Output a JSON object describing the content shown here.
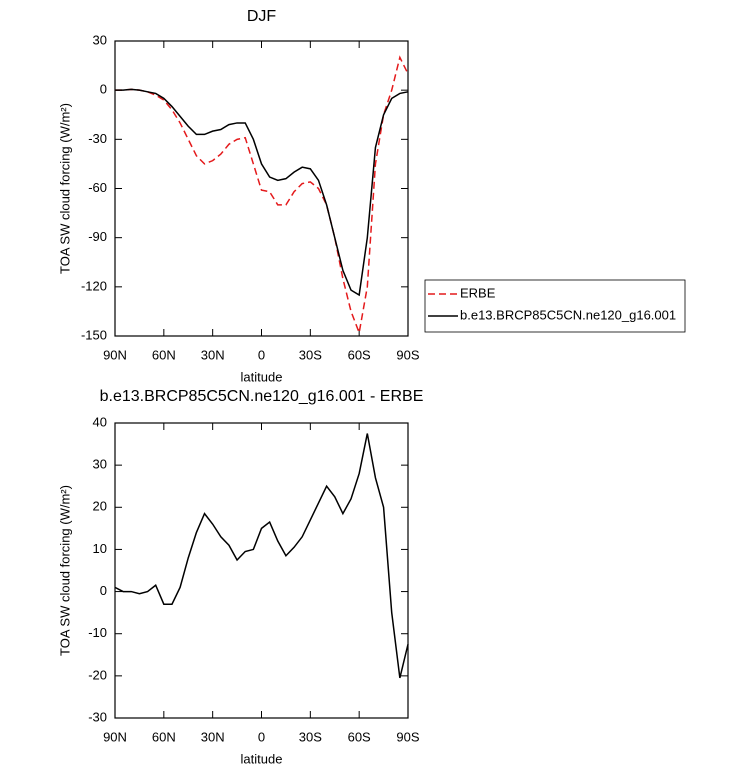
{
  "chart_data": [
    {
      "type": "line",
      "title": "DJF",
      "xlabel": "latitude",
      "ylabel": "TOA SW cloud forcing (W/m²)",
      "x": [
        90,
        85,
        80,
        75,
        70,
        65,
        60,
        55,
        50,
        45,
        40,
        35,
        30,
        25,
        20,
        15,
        10,
        5,
        0,
        -5,
        -10,
        -15,
        -20,
        -25,
        -30,
        -35,
        -40,
        -45,
        -50,
        -55,
        -60,
        -65,
        -70,
        -75,
        -80,
        -85,
        -90
      ],
      "series": [
        {
          "name": "ERBE",
          "color": "#e41a1c",
          "dash": true,
          "values": [
            0,
            0,
            0.5,
            0,
            -1,
            -3,
            -6,
            -12,
            -20,
            -30,
            -40,
            -45,
            -43,
            -39,
            -33,
            -30,
            -29,
            -45,
            -61,
            -62,
            -70,
            -70,
            -62,
            -57,
            -56,
            -60,
            -70,
            -90,
            -115,
            -135,
            -148,
            -120,
            -45,
            -15,
            0,
            20,
            10
          ]
        },
        {
          "name": "b.e13.BRCP85C5CN.ne120_g16.001",
          "color": "#000000",
          "dash": false,
          "values": [
            0,
            0,
            0.5,
            0,
            -1,
            -2,
            -5,
            -10,
            -16,
            -22,
            -27,
            -27,
            -25,
            -24,
            -21,
            -20,
            -20,
            -30,
            -45,
            -53,
            -55,
            -54,
            -50,
            -47,
            -48,
            -55,
            -70,
            -90,
            -110,
            -122,
            -125,
            -90,
            -35,
            -15,
            -5,
            -2,
            -1
          ]
        }
      ],
      "xlim": [
        90,
        -90
      ],
      "xticks": [
        {
          "value": 90,
          "label": "90N"
        },
        {
          "value": 60,
          "label": "60N"
        },
        {
          "value": 30,
          "label": "30N"
        },
        0,
        {
          "value": -30,
          "label": "30S"
        },
        {
          "value": -60,
          "label": "60S"
        },
        {
          "value": -90,
          "label": "90S"
        }
      ],
      "ylim": [
        -150,
        30
      ],
      "yticks": [
        -150,
        -120,
        -90,
        -60,
        -30,
        0,
        30
      ],
      "legend": "right"
    },
    {
      "type": "line",
      "title": "b.e13.BRCP85C5CN.ne120_g16.001 - ERBE",
      "xlabel": "latitude",
      "ylabel": "TOA SW cloud forcing (W/m²)",
      "x": [
        90,
        85,
        80,
        75,
        70,
        65,
        60,
        55,
        50,
        45,
        40,
        35,
        30,
        25,
        20,
        15,
        10,
        5,
        0,
        -5,
        -10,
        -15,
        -20,
        -25,
        -30,
        -35,
        -40,
        -45,
        -50,
        -55,
        -60,
        -65,
        -70,
        -75,
        -80,
        -85,
        -90
      ],
      "series": [
        {
          "color": "#000000",
          "dash": false,
          "values": [
            1,
            0,
            0,
            -0.5,
            0,
            1.5,
            -3,
            -3,
            1,
            8,
            14,
            18.5,
            16,
            13,
            11,
            7.5,
            9.5,
            10,
            15,
            16.5,
            12,
            8.5,
            10.5,
            13,
            17,
            21,
            25,
            22.5,
            18.5,
            22,
            28,
            37.5,
            27,
            20,
            -5,
            -20.5,
            -12.5
          ]
        }
      ],
      "xlim": [
        90,
        -90
      ],
      "xticks": [
        {
          "value": 90,
          "label": "90N"
        },
        {
          "value": 60,
          "label": "60N"
        },
        {
          "value": 30,
          "label": "30N"
        },
        0,
        {
          "value": -30,
          "label": "30S"
        },
        {
          "value": -60,
          "label": "60S"
        },
        {
          "value": -90,
          "label": "90S"
        }
      ],
      "ylim": [
        -30,
        40
      ],
      "yticks": [
        -30,
        -20,
        -10,
        0,
        10,
        20,
        30,
        40
      ]
    }
  ]
}
